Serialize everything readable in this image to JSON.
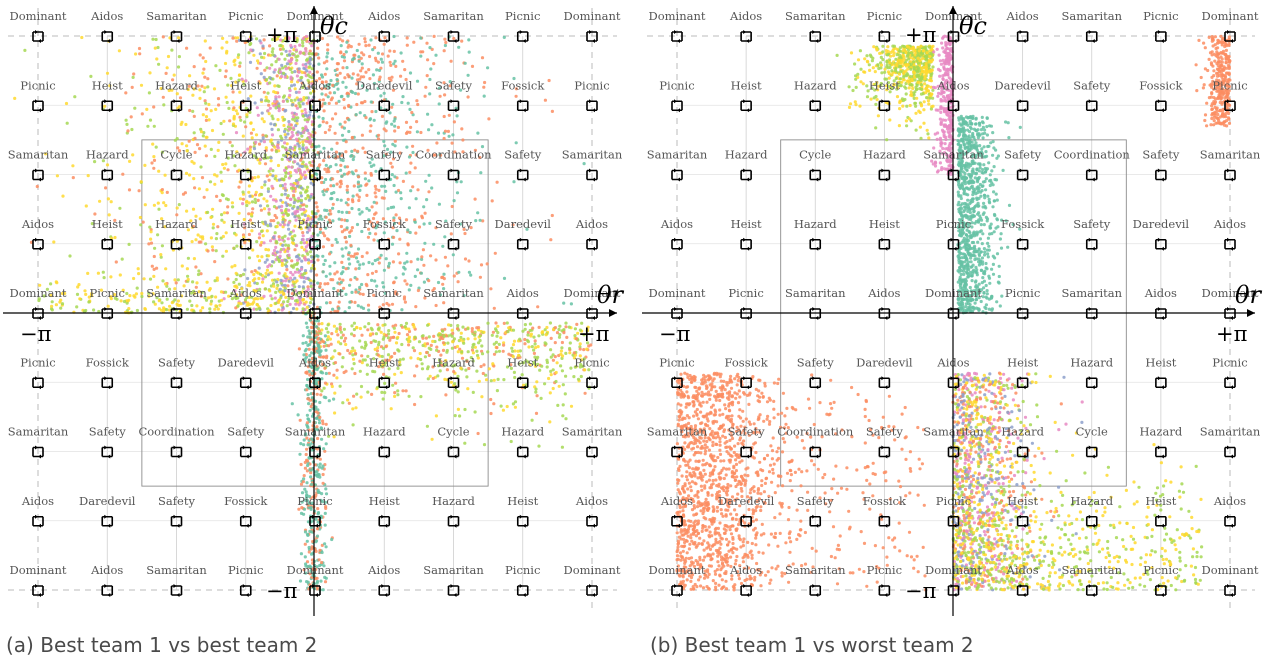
{
  "figure": {
    "panels": [
      {
        "id": "a",
        "caption": "(a) Best team 1 vs best team 2",
        "axis_x_label": "θr",
        "axis_y_label": "θc",
        "tick_labels": {
          "x_min": "−π",
          "x_max": "+π",
          "y_max": "+π",
          "y_min": "−π"
        },
        "grid_labels": [
          [
            "Dominant",
            "Aidos",
            "Samaritan",
            "Picnic",
            "Dominant",
            "Aidos",
            "Samaritan",
            "Picnic",
            "Dominant"
          ],
          [
            "Picnic",
            "Heist",
            "Hazard",
            "Heist",
            "Aidos",
            "Daredevil",
            "Safety",
            "Fossick",
            "Picnic"
          ],
          [
            "Samaritan",
            "Hazard",
            "Cycle",
            "Hazard",
            "Samaritan",
            "Safety",
            "Coordination",
            "Safety",
            "Samaritan"
          ],
          [
            "Aidos",
            "Heist",
            "Hazard",
            "Heist",
            "Picnic",
            "Fossick",
            "Safety",
            "Daredevil",
            "Aidos"
          ],
          [
            "Dominant",
            "Picnic",
            "Samaritan",
            "Aidos",
            "Dominant",
            "Picnic",
            "Samaritan",
            "Aidos",
            "Dominant"
          ],
          [
            "Picnic",
            "Fossick",
            "Safety",
            "Daredevil",
            "Aidos",
            "Heist",
            "Hazard",
            "Heist",
            "Picnic"
          ],
          [
            "Samaritan",
            "Safety",
            "Coordination",
            "Safety",
            "Samaritan",
            "Hazard",
            "Cycle",
            "Hazard",
            "Samaritan"
          ],
          [
            "Aidos",
            "Daredevil",
            "Safety",
            "Fossick",
            "Picnic",
            "Heist",
            "Hazard",
            "Heist",
            "Aidos"
          ],
          [
            "Dominant",
            "Aidos",
            "Samaritan",
            "Picnic",
            "Dominant",
            "Aidos",
            "Samaritan",
            "Picnic",
            "Dominant"
          ]
        ]
      },
      {
        "id": "b",
        "caption": "(b) Best team 1 vs worst team 2",
        "axis_x_label": "θr",
        "axis_y_label": "θc",
        "tick_labels": {
          "x_min": "−π",
          "x_max": "+π",
          "y_max": "+π",
          "y_min": "−π"
        },
        "grid_labels": [
          [
            "Dominant",
            "Aidos",
            "Samaritan",
            "Picnic",
            "Dominant",
            "Aidos",
            "Samaritan",
            "Picnic",
            "Dominant"
          ],
          [
            "Picnic",
            "Heist",
            "Hazard",
            "Heist",
            "Aidos",
            "Daredevil",
            "Safety",
            "Fossick",
            "Picnic"
          ],
          [
            "Samaritan",
            "Hazard",
            "Cycle",
            "Hazard",
            "Samaritan",
            "Safety",
            "Coordination",
            "Safety",
            "Samaritan"
          ],
          [
            "Aidos",
            "Heist",
            "Hazard",
            "Heist",
            "Picnic",
            "Fossick",
            "Safety",
            "Daredevil",
            "Aidos"
          ],
          [
            "Dominant",
            "Picnic",
            "Samaritan",
            "Aidos",
            "Dominant",
            "Picnic",
            "Samaritan",
            "Aidos",
            "Dominant"
          ],
          [
            "Picnic",
            "Fossick",
            "Safety",
            "Daredevil",
            "Aidos",
            "Heist",
            "Hazard",
            "Heist",
            "Picnic"
          ],
          [
            "Samaritan",
            "Safety",
            "Coordination",
            "Safety",
            "Samaritan",
            "Hazard",
            "Cycle",
            "Hazard",
            "Samaritan"
          ],
          [
            "Aidos",
            "Daredevil",
            "Safety",
            "Fossick",
            "Picnic",
            "Heist",
            "Hazard",
            "Heist",
            "Aidos"
          ],
          [
            "Dominant",
            "Aidos",
            "Samaritan",
            "Picnic",
            "Dominant",
            "Aidos",
            "Samaritan",
            "Picnic",
            "Dominant"
          ]
        ]
      }
    ],
    "colors": {
      "teal": "#66c2a5",
      "orange": "#fc8d62",
      "blue": "#8da0cb",
      "pink": "#e78ac3",
      "lime": "#a6d854",
      "yellow": "#ffd92f",
      "axis": "#000000",
      "label": "#555555",
      "grid": "#999999"
    }
  }
}
